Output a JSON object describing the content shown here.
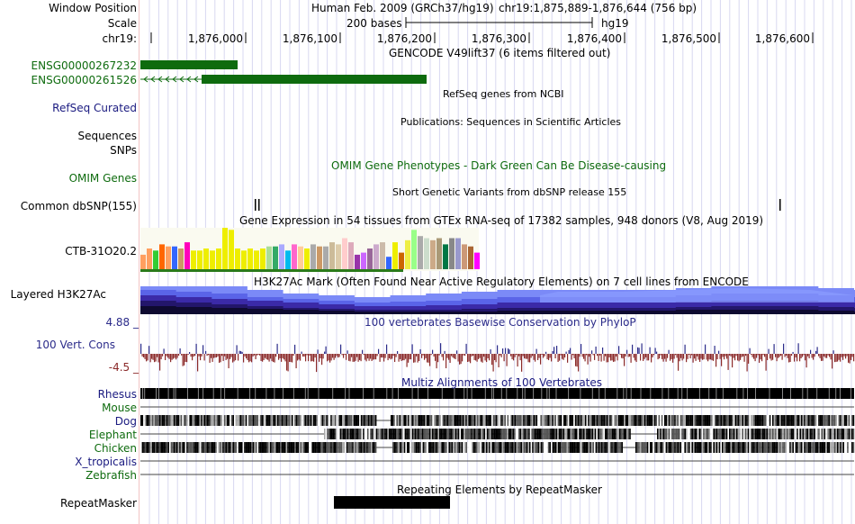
{
  "header": {
    "window_position_label": "Window Position",
    "assembly_text": "Human Feb. 2009 (GRCh37/hg19)",
    "position_text": "chr19:1,875,889-1,876,644 (756 bp)",
    "scale_label": "Scale",
    "scale_text": "200 bases",
    "scale_db": "hg19",
    "chrom_label": "chr19:",
    "ruler_ticks": [
      "1,876,000",
      "1,876,100",
      "1,876,200",
      "1,876,300",
      "1,876,400",
      "1,876,500",
      "1,876,600"
    ]
  },
  "tracks": {
    "gencode": {
      "title": "GENCODE V49lift37 (6 items filtered out)",
      "items": [
        "ENSG00000267232",
        "ENSG00000261526"
      ],
      "color": "#0e6b0e"
    },
    "refseq": {
      "title": "RefSeq genes from NCBI",
      "label": "RefSeq Curated",
      "color": "#1a1a80"
    },
    "publications": {
      "title": "Publications: Sequences in Scientific Articles",
      "label": "Sequences"
    },
    "snps_label": "SNPs",
    "omim": {
      "title": "OMIM Gene Phenotypes - Dark Green Can Be Disease-causing",
      "label": "OMIM Genes",
      "color": "#0e6b0e"
    },
    "dbsnp": {
      "title": "Short Genetic Variants from dbSNP release 155",
      "label": "Common dbSNP(155)"
    },
    "gtex": {
      "title": "Gene Expression in 54 tissues from GTEx RNA-seq of 17382 samples, 948 donors (V8, Aug 2019)",
      "label": "CTB-31O20.2",
      "bars": [
        {
          "v": 0.35,
          "c": "#ff9f5f"
        },
        {
          "v": 0.5,
          "c": "#ff9f5f"
        },
        {
          "v": 0.45,
          "c": "#33cc33"
        },
        {
          "v": 0.6,
          "c": "#ff6600"
        },
        {
          "v": 0.55,
          "c": "#ff9f5f"
        },
        {
          "v": 0.55,
          "c": "#3366ff"
        },
        {
          "v": 0.5,
          "c": "#cc9966"
        },
        {
          "v": 0.65,
          "c": "#ff00bb"
        },
        {
          "v": 0.45,
          "c": "#eeee00"
        },
        {
          "v": 0.45,
          "c": "#eeee00"
        },
        {
          "v": 0.5,
          "c": "#eeee00"
        },
        {
          "v": 0.45,
          "c": "#eeee00"
        },
        {
          "v": 0.5,
          "c": "#eeee00"
        },
        {
          "v": 1.0,
          "c": "#eeee00"
        },
        {
          "v": 0.95,
          "c": "#eeee00"
        },
        {
          "v": 0.5,
          "c": "#eeee00"
        },
        {
          "v": 0.45,
          "c": "#eeee00"
        },
        {
          "v": 0.5,
          "c": "#eeee00"
        },
        {
          "v": 0.45,
          "c": "#eeee00"
        },
        {
          "v": 0.5,
          "c": "#eeee00"
        },
        {
          "v": 0.55,
          "c": "#aadd99"
        },
        {
          "v": 0.55,
          "c": "#33aa66"
        },
        {
          "v": 0.6,
          "c": "#aaaaff"
        },
        {
          "v": 0.45,
          "c": "#00bbee"
        },
        {
          "v": 0.6,
          "c": "#ff66cc"
        },
        {
          "v": 0.55,
          "c": "#ffcc99"
        },
        {
          "v": 0.5,
          "c": "#eeee00"
        },
        {
          "v": 0.6,
          "c": "#aaaaaa"
        },
        {
          "v": 0.55,
          "c": "#cc9966"
        },
        {
          "v": 0.55,
          "c": "#aaaaaa"
        },
        {
          "v": 0.65,
          "c": "#ccbb99"
        },
        {
          "v": 0.6,
          "c": "#ddccaa"
        },
        {
          "v": 0.75,
          "c": "#ffcccc"
        },
        {
          "v": 0.65,
          "c": "#ddaabb"
        },
        {
          "v": 0.35,
          "c": "#9933aa"
        },
        {
          "v": 0.4,
          "c": "#cc66ff"
        },
        {
          "v": 0.5,
          "c": "#996699"
        },
        {
          "v": 0.6,
          "c": "#ccaacc"
        },
        {
          "v": 0.65,
          "c": "#ccbbaa"
        },
        {
          "v": 0.3,
          "c": "#3366ff"
        },
        {
          "v": 0.65,
          "c": "#eeee00"
        },
        {
          "v": 0.4,
          "c": "#cc6600"
        },
        {
          "v": 0.7,
          "c": "#eeee44"
        },
        {
          "v": 0.95,
          "c": "#99ff88"
        },
        {
          "v": 0.8,
          "c": "#aaaaaa"
        },
        {
          "v": 0.75,
          "c": "#ccddcc"
        },
        {
          "v": 0.7,
          "c": "#ccaa88"
        },
        {
          "v": 0.75,
          "c": "#aa9977"
        },
        {
          "v": 0.6,
          "c": "#007744"
        },
        {
          "v": 0.75,
          "c": "#888888"
        },
        {
          "v": 0.75,
          "c": "#9999cc"
        },
        {
          "v": 0.6,
          "c": "#cc9977"
        },
        {
          "v": 0.55,
          "c": "#aa6633"
        },
        {
          "v": 0.4,
          "c": "#ff00ff"
        }
      ]
    },
    "h3k27ac": {
      "title": "H3K27Ac Mark (Often Found Near Active Regulatory Elements) on 7 cell lines from ENCODE",
      "label": "Layered H3K27Ac"
    },
    "cons": {
      "title": "100 vertebrates Basewise Conservation by PhyloP",
      "label": "100 Vert. Cons",
      "max": "4.88 _",
      "min": "-4.5 _",
      "color": "#2b2b8a",
      "neg_color": "#8b2a2a"
    },
    "multiz": {
      "title": "Multiz Alignments of 100 Vertebrates",
      "species": [
        "Rhesus",
        "Mouse",
        "Dog",
        "Elephant",
        "Chicken",
        "X_tropicalis",
        "Zebrafish"
      ],
      "colors": {
        "Rhesus": "#1a1a80",
        "Mouse": "#0e6b0e",
        "Dog": "#1a1a80",
        "Elephant": "#0e6b0e",
        "Chicken": "#0e6b0e",
        "X_tropicalis": "#1a1a80",
        "Zebrafish": "#0e6b0e"
      }
    },
    "repeatmasker": {
      "title": "Repeating Elements by RepeatMasker",
      "label": "RepeatMasker"
    }
  }
}
